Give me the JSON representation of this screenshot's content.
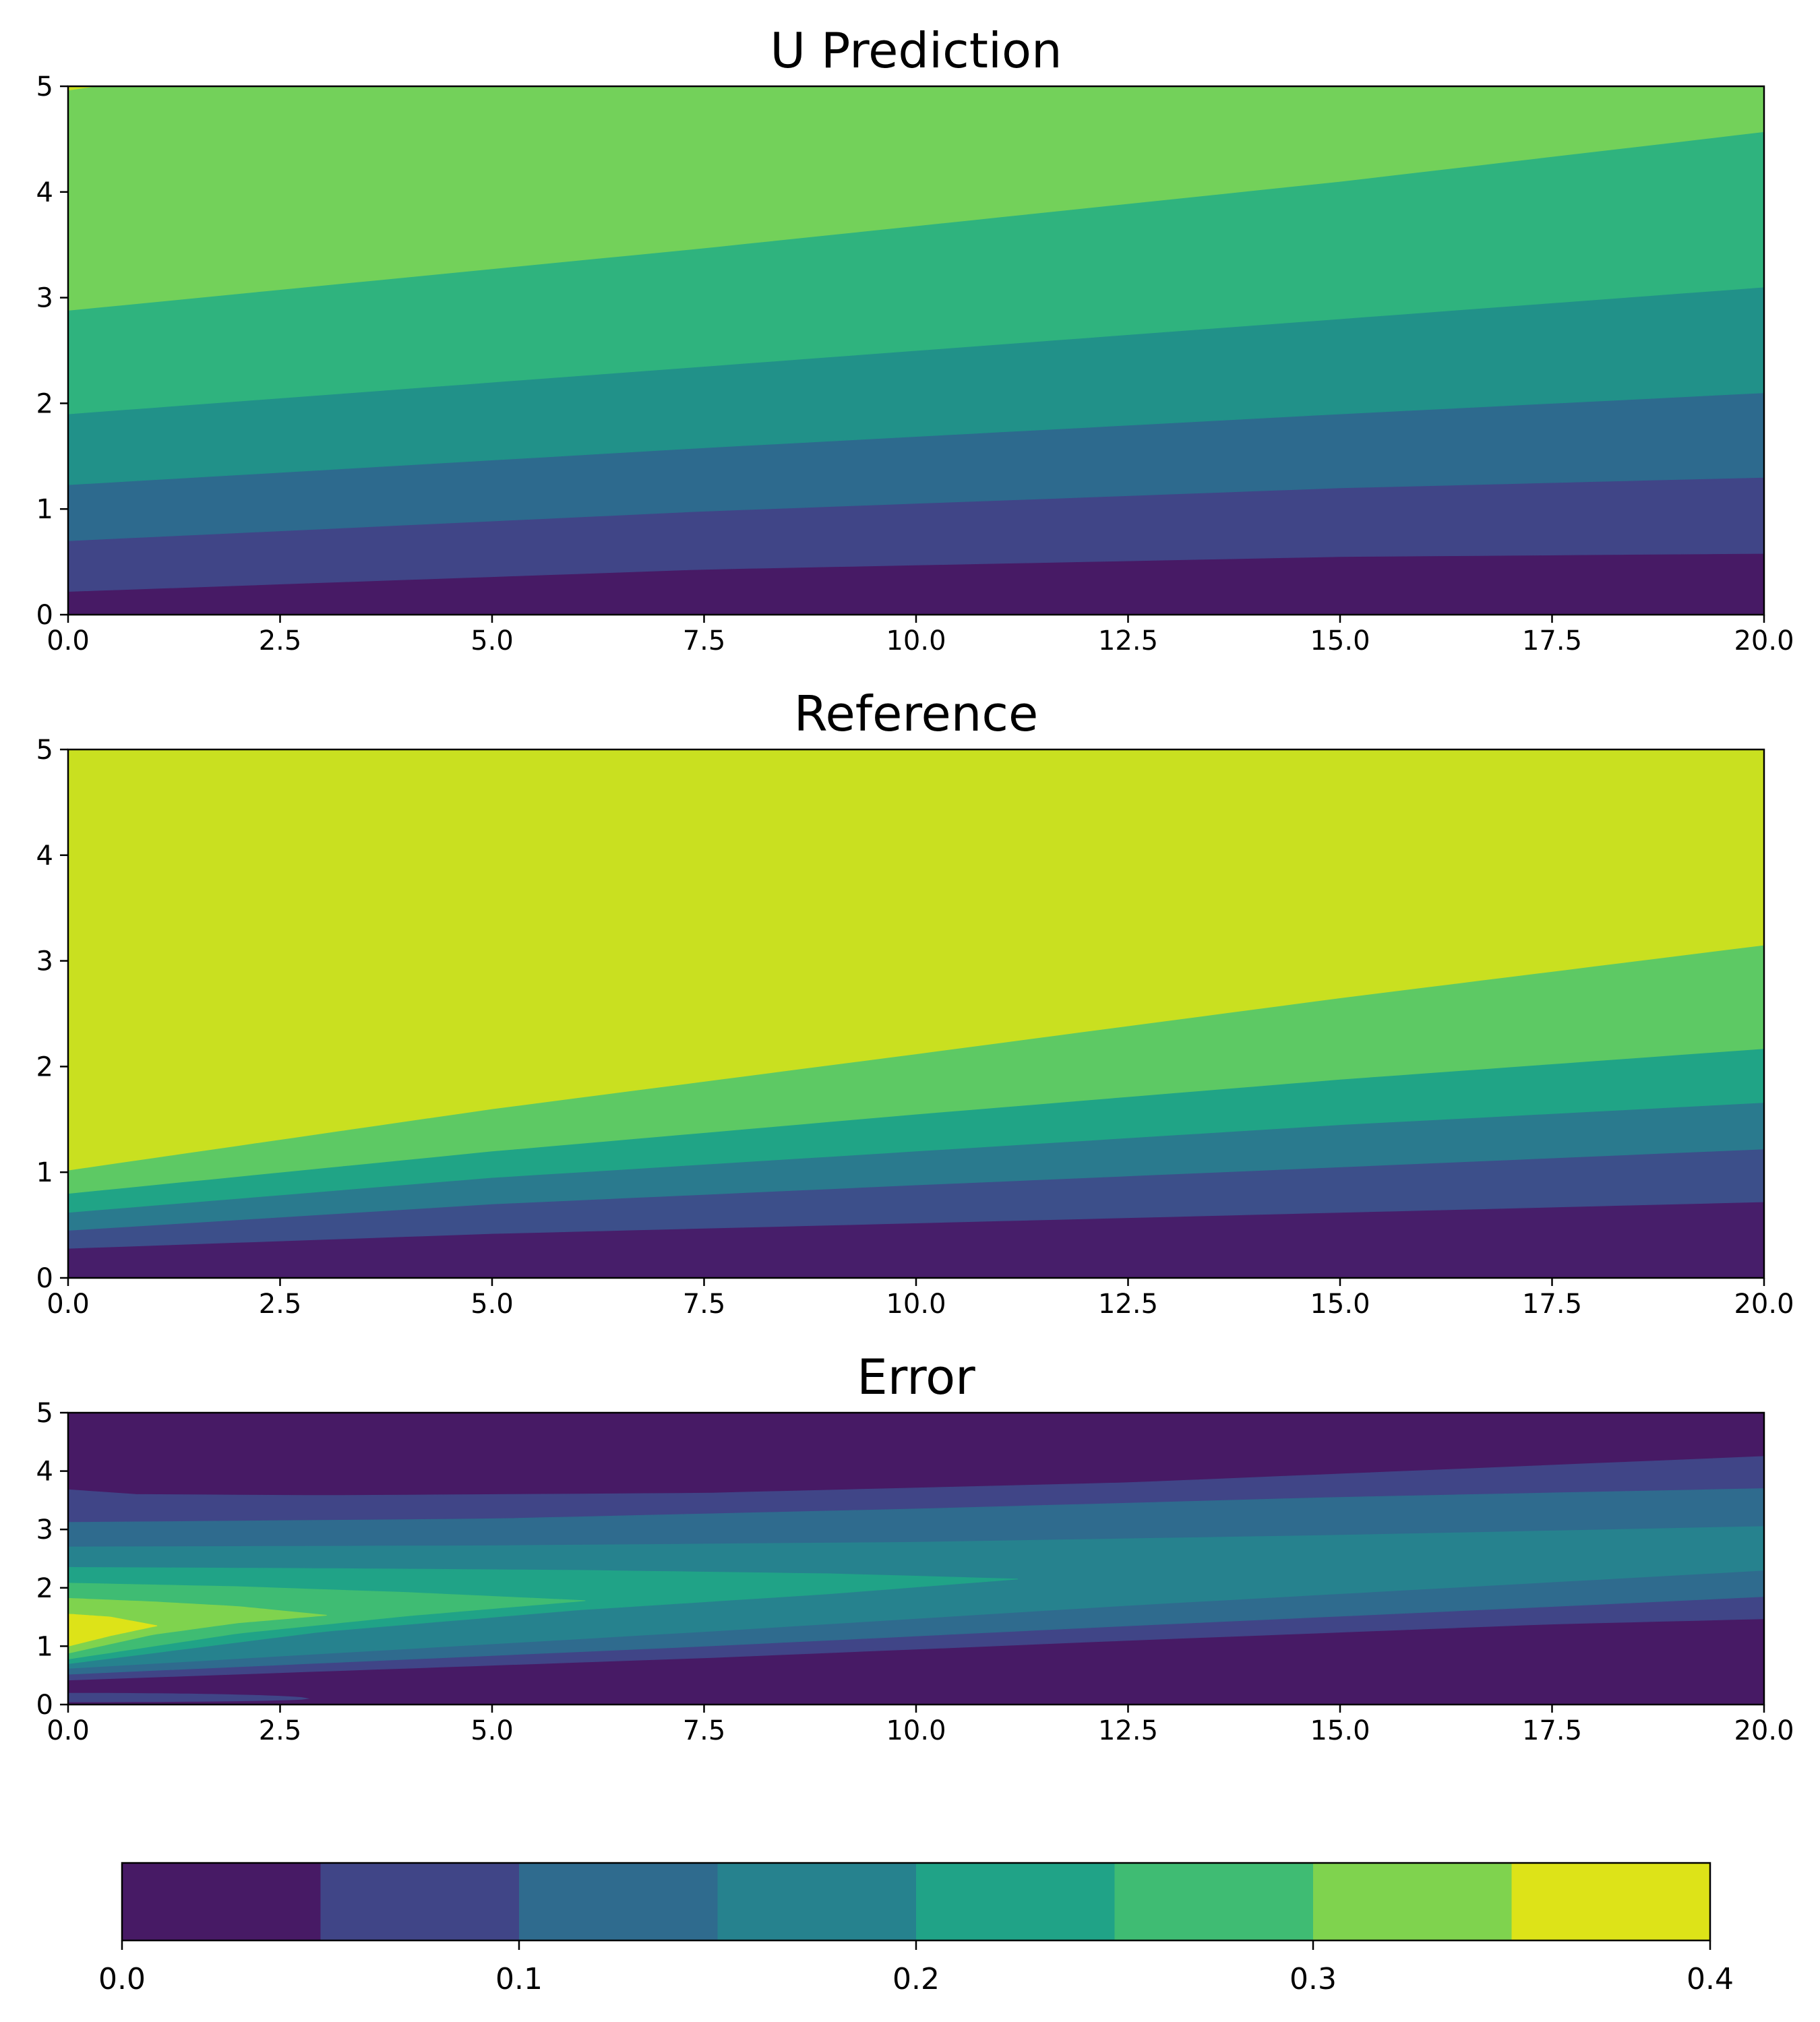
{
  "chart_data": [
    {
      "type": "contour",
      "title": "U Prediction",
      "xlim": [
        0,
        20
      ],
      "ylim": [
        0,
        5
      ],
      "x_ticks": [
        "0.0",
        "2.5",
        "5.0",
        "7.5",
        "10.0",
        "12.5",
        "15.0",
        "17.5",
        "20.0"
      ],
      "y_ticks": [
        "0",
        "1",
        "2",
        "3",
        "4",
        "5"
      ],
      "level_colors": [
        "#471a65",
        "#404587",
        "#2d6a8e",
        "#219189",
        "#2fb37e",
        "#73d15a"
      ],
      "boundaries": [
        {
          "x": [
            0,
            7.5,
            15,
            20
          ],
          "y": [
            0.22,
            0.43,
            0.55,
            0.58
          ]
        },
        {
          "x": [
            0,
            7.5,
            15,
            20
          ],
          "y": [
            0.7,
            0.98,
            1.2,
            1.3
          ]
        },
        {
          "x": [
            0,
            7.5,
            15,
            20
          ],
          "y": [
            1.23,
            1.58,
            1.9,
            2.1
          ]
        },
        {
          "x": [
            0,
            7.5,
            15,
            20
          ],
          "y": [
            1.9,
            2.35,
            2.8,
            3.1
          ]
        },
        {
          "x": [
            0,
            7.5,
            15,
            20
          ],
          "y": [
            2.88,
            3.47,
            4.1,
            4.57
          ]
        }
      ]
    },
    {
      "type": "contour",
      "title": "Reference",
      "xlim": [
        0,
        20
      ],
      "ylim": [
        0,
        5
      ],
      "x_ticks": [
        "0.0",
        "2.5",
        "5.0",
        "7.5",
        "10.0",
        "12.5",
        "15.0",
        "17.5",
        "20.0"
      ],
      "y_ticks": [
        "0",
        "1",
        "2",
        "3",
        "4",
        "5"
      ],
      "level_colors": [
        "#471e6a",
        "#3c4f8a",
        "#2a7a8e",
        "#20a486",
        "#5dc964",
        "#c9e020"
      ],
      "boundaries": [
        {
          "x": [
            0,
            5,
            10,
            15,
            20
          ],
          "y": [
            0.28,
            0.42,
            0.52,
            0.62,
            0.72
          ]
        },
        {
          "x": [
            0,
            5,
            10,
            15,
            20
          ],
          "y": [
            0.45,
            0.7,
            0.88,
            1.05,
            1.22
          ]
        },
        {
          "x": [
            0,
            5,
            10,
            15,
            20
          ],
          "y": [
            0.62,
            0.95,
            1.2,
            1.45,
            1.66
          ]
        },
        {
          "x": [
            0,
            5,
            10,
            15,
            20
          ],
          "y": [
            0.8,
            1.2,
            1.55,
            1.88,
            2.17
          ]
        },
        {
          "x": [
            0,
            5,
            10,
            15,
            20
          ],
          "y": [
            1.02,
            1.6,
            2.12,
            2.65,
            3.15
          ]
        }
      ]
    },
    {
      "type": "contour",
      "title": "Error",
      "xlim": [
        0,
        20
      ],
      "ylim": [
        0,
        5
      ],
      "x_ticks": [
        "0.0",
        "2.5",
        "5.0",
        "7.5",
        "10.0",
        "12.5",
        "15.0",
        "17.5",
        "20.0"
      ],
      "y_ticks": [
        "0",
        "1",
        "2",
        "3",
        "4",
        "5"
      ],
      "background_color": "#471a65",
      "regions": [
        {
          "color": "#404587",
          "upper": {
            "x": [
              0,
              0.8,
              3,
              7.5,
              12.5,
              17.5,
              20
            ],
            "y": [
              3.68,
              3.6,
              3.58,
              3.62,
              3.8,
              4.1,
              4.25
            ]
          },
          "lower": {
            "x": [
              0,
              7.5,
              12.5,
              17.5,
              20
            ],
            "y": [
              0.42,
              0.8,
              1.1,
              1.38,
              1.47
            ]
          }
        },
        {
          "color": "#2f6b8e",
          "upper": {
            "x": [
              0,
              5,
              10,
              15,
              20
            ],
            "y": [
              3.12,
              3.18,
              3.35,
              3.55,
              3.7
            ]
          },
          "lower": {
            "x": [
              0,
              7.5,
              12.5,
              17.5,
              20
            ],
            "y": [
              0.52,
              1.0,
              1.35,
              1.68,
              1.85
            ]
          }
        },
        {
          "color": "#26828e",
          "upper": {
            "x": [
              0,
              5,
              10,
              15,
              20
            ],
            "y": [
              2.7,
              2.72,
              2.78,
              2.9,
              3.05
            ]
          },
          "lower": {
            "x": [
              0,
              7.5,
              12.5,
              17.5,
              20
            ],
            "y": [
              0.62,
              1.25,
              1.7,
              2.1,
              2.3
            ]
          }
        },
        {
          "color": "#20a387",
          "tip_x": 11.2,
          "upper": {
            "x": [
              0,
              3,
              6,
              9,
              11.2
            ],
            "y": [
              2.35,
              2.33,
              2.3,
              2.24,
              2.15
            ]
          },
          "lower": {
            "x": [
              0,
              3,
              6,
              9,
              11.2
            ],
            "y": [
              0.7,
              1.25,
              1.62,
              1.9,
              2.15
            ]
          }
        },
        {
          "color": "#3fbc73",
          "tip_x": 6.1,
          "upper": {
            "x": [
              0,
              2,
              4,
              6.1
            ],
            "y": [
              2.08,
              2.02,
              1.92,
              1.78
            ]
          },
          "lower": {
            "x": [
              0,
              2,
              4,
              6.1
            ],
            "y": [
              0.78,
              1.22,
              1.52,
              1.78
            ]
          }
        },
        {
          "color": "#7fd34e",
          "tip_x": 3.05,
          "upper": {
            "x": [
              0,
              1,
              2,
              3.05
            ],
            "y": [
              1.82,
              1.76,
              1.68,
              1.53
            ]
          },
          "lower": {
            "x": [
              0,
              1,
              2,
              3.05
            ],
            "y": [
              0.88,
              1.2,
              1.4,
              1.53
            ]
          }
        },
        {
          "color": "#dde318",
          "tip_x": 1.05,
          "upper": {
            "x": [
              0,
              0.5,
              1.05
            ],
            "y": [
              1.55,
              1.5,
              1.35
            ]
          },
          "lower": {
            "x": [
              0,
              0.5,
              1.05
            ],
            "y": [
              1.0,
              1.18,
              1.35
            ]
          }
        }
      ],
      "bottom_sliver": {
        "color": "#404587",
        "x_end": 2.85,
        "y_top": 0.2
      }
    }
  ],
  "colorbar": {
    "ticks": [
      "0.0",
      "0.1",
      "0.2",
      "0.3",
      "0.4"
    ],
    "range": [
      0,
      0.4
    ],
    "colors": [
      "#471a65",
      "#404587",
      "#2f6b8e",
      "#26828e",
      "#20a387",
      "#3fbc73",
      "#7fd34e",
      "#dde318"
    ]
  }
}
